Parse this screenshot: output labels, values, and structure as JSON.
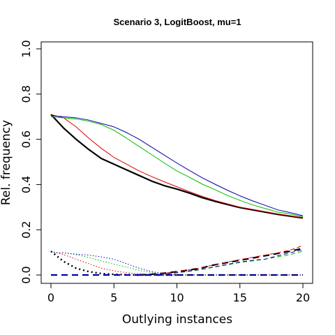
{
  "chart_data": {
    "type": "line",
    "title": "Scenario 3, LogitBoost, mu=1",
    "xlabel": "Outlying instances",
    "ylabel": "Rel. frequency",
    "xlim": [
      0,
      20
    ],
    "ylim": [
      0,
      1.0
    ],
    "x_ticks": [
      0,
      5,
      10,
      15,
      20
    ],
    "y_ticks": [
      0.0,
      0.2,
      0.4,
      0.6,
      0.8,
      1.0
    ],
    "y_tick_labels": [
      "0.0",
      "0.2",
      "0.4",
      "0.6",
      "0.8",
      "1.0"
    ],
    "grid": false,
    "legend": "none",
    "series": [
      {
        "color": "#000000",
        "style": "solid",
        "width": 2.2,
        "x": [
          0,
          1,
          2,
          3,
          4,
          5,
          6,
          7,
          8,
          9,
          10,
          11,
          12,
          13,
          14,
          15,
          16,
          17,
          18,
          19,
          20
        ],
        "y": [
          0.71,
          0.65,
          0.6,
          0.555,
          0.515,
          0.49,
          0.465,
          0.44,
          0.415,
          0.395,
          0.38,
          0.362,
          0.342,
          0.326,
          0.312,
          0.298,
          0.288,
          0.278,
          0.268,
          0.26,
          0.252
        ]
      },
      {
        "color": "#dd0000",
        "style": "solid",
        "width": 1,
        "x": [
          0,
          1,
          2,
          3,
          4,
          5,
          6,
          7,
          8,
          9,
          10,
          11,
          12,
          13,
          14,
          15,
          16,
          17,
          18,
          19,
          20
        ],
        "y": [
          0.71,
          0.695,
          0.655,
          0.605,
          0.56,
          0.52,
          0.49,
          0.46,
          0.435,
          0.412,
          0.39,
          0.368,
          0.348,
          0.33,
          0.315,
          0.3,
          0.29,
          0.28,
          0.27,
          0.262,
          0.252
        ]
      },
      {
        "color": "#00bb00",
        "style": "solid",
        "width": 1,
        "x": [
          0,
          1,
          2,
          3,
          4,
          5,
          6,
          7,
          8,
          9,
          10,
          11,
          12,
          13,
          14,
          15,
          16,
          17,
          18,
          19,
          20
        ],
        "y": [
          0.7,
          0.695,
          0.69,
          0.68,
          0.665,
          0.64,
          0.605,
          0.568,
          0.532,
          0.495,
          0.46,
          0.432,
          0.402,
          0.378,
          0.352,
          0.33,
          0.31,
          0.294,
          0.278,
          0.27,
          0.258
        ]
      },
      {
        "color": "#0000aa",
        "style": "solid",
        "width": 1,
        "x": [
          0,
          1,
          2,
          3,
          4,
          5,
          6,
          7,
          8,
          9,
          10,
          11,
          12,
          13,
          14,
          15,
          16,
          17,
          18,
          19,
          20
        ],
        "y": [
          0.705,
          0.7,
          0.695,
          0.685,
          0.67,
          0.655,
          0.63,
          0.6,
          0.565,
          0.53,
          0.495,
          0.462,
          0.43,
          0.402,
          0.375,
          0.35,
          0.328,
          0.308,
          0.288,
          0.276,
          0.262
        ]
      },
      {
        "color": "#000000",
        "style": "dotted",
        "width": 2.5,
        "x": [
          0,
          1,
          2,
          3,
          4,
          5,
          6,
          7,
          8,
          9,
          10
        ],
        "y": [
          0.105,
          0.06,
          0.03,
          0.015,
          0.006,
          0.003,
          0.001,
          0,
          0,
          0,
          0
        ]
      },
      {
        "color": "#dd0000",
        "style": "dotted",
        "width": 1,
        "x": [
          0,
          1,
          2,
          3,
          4,
          5,
          6,
          7,
          8,
          9,
          10
        ],
        "y": [
          0.105,
          0.09,
          0.07,
          0.05,
          0.03,
          0.018,
          0.01,
          0.005,
          0.002,
          0,
          0
        ]
      },
      {
        "color": "#00bb00",
        "style": "dotted",
        "width": 1,
        "x": [
          0,
          1,
          2,
          3,
          4,
          5,
          6,
          7,
          8,
          9,
          10
        ],
        "y": [
          0.1,
          0.098,
          0.09,
          0.078,
          0.062,
          0.048,
          0.035,
          0.02,
          0.01,
          0.003,
          0
        ]
      },
      {
        "color": "#0000aa",
        "style": "dotted",
        "width": 1,
        "x": [
          0,
          1,
          2,
          3,
          4,
          5,
          6,
          7,
          8,
          9,
          10
        ],
        "y": [
          0.1,
          0.098,
          0.092,
          0.088,
          0.08,
          0.07,
          0.05,
          0.03,
          0.015,
          0.005,
          0.002
        ]
      },
      {
        "color": "#000000",
        "style": "dashed",
        "width": 2.2,
        "x": [
          7,
          8,
          9,
          10,
          11,
          12,
          13,
          14,
          15,
          16,
          17,
          18,
          19,
          20
        ],
        "y": [
          0,
          0.003,
          0.008,
          0.015,
          0.022,
          0.032,
          0.045,
          0.055,
          0.065,
          0.075,
          0.085,
          0.095,
          0.105,
          0.118
        ]
      },
      {
        "color": "#dd0000",
        "style": "dashed",
        "width": 1,
        "x": [
          7,
          8,
          9,
          10,
          11,
          12,
          13,
          14,
          15,
          16,
          17,
          18,
          19,
          20
        ],
        "y": [
          0,
          0.003,
          0.008,
          0.015,
          0.023,
          0.033,
          0.045,
          0.057,
          0.068,
          0.078,
          0.088,
          0.098,
          0.11,
          0.13
        ]
      },
      {
        "color": "#00bb00",
        "style": "dashed",
        "width": 1,
        "x": [
          7,
          8,
          9,
          10,
          11,
          12,
          13,
          14,
          15,
          16,
          17,
          18,
          19,
          20
        ],
        "y": [
          0,
          0.002,
          0.005,
          0.01,
          0.016,
          0.025,
          0.035,
          0.045,
          0.055,
          0.062,
          0.07,
          0.08,
          0.09,
          0.105
        ]
      },
      {
        "color": "#0000aa",
        "style": "dashed",
        "width": 1,
        "x": [
          7,
          8,
          9,
          10,
          11,
          12,
          13,
          14,
          15,
          16,
          17,
          18,
          19,
          20
        ],
        "y": [
          0,
          0.002,
          0.005,
          0.01,
          0.018,
          0.026,
          0.036,
          0.047,
          0.057,
          0.065,
          0.07,
          0.085,
          0.098,
          0.112
        ]
      },
      {
        "color": "#0000aa",
        "style": "dashed",
        "width": 2.2,
        "x": [
          0,
          20
        ],
        "y": [
          0,
          0
        ]
      },
      {
        "color": "#000000",
        "style": "dotted",
        "width": 1.2,
        "x": [
          10,
          20
        ],
        "y": [
          0,
          0
        ]
      }
    ]
  }
}
